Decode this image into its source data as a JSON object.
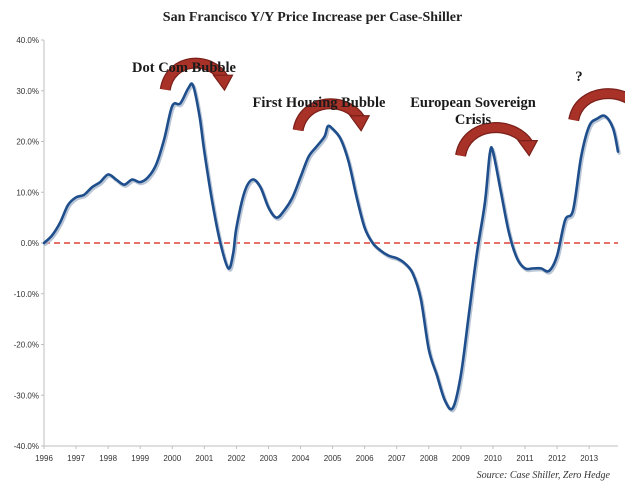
{
  "chart_data": {
    "type": "line",
    "title": "San Francisco Y/Y Price Increase per Case-Shiller",
    "source": "Source: Case Shiller, Zero Hedge",
    "xlabel": "",
    "ylabel": "",
    "xlim": [
      1996,
      2013.9
    ],
    "ylim": [
      -40,
      40
    ],
    "x_ticks": [
      "1996",
      "1997",
      "1998",
      "1999",
      "2000",
      "2001",
      "2002",
      "2003",
      "2004",
      "2005",
      "2006",
      "2007",
      "2008",
      "2009",
      "2010",
      "2011",
      "2012",
      "2013"
    ],
    "y_ticks": [
      "-40.0%",
      "-30.0%",
      "-20.0%",
      "-10.0%",
      "0.0%",
      "10.0%",
      "20.0%",
      "30.0%",
      "40.0%"
    ],
    "reference_line": {
      "y": 0,
      "style": "dashed",
      "color": "#e0403a"
    },
    "grid": false,
    "series": [
      {
        "name": "San Francisco Y/Y",
        "color": "#1f4e8c",
        "points": [
          [
            1996.0,
            0.0
          ],
          [
            1996.25,
            1.5
          ],
          [
            1996.5,
            4.0
          ],
          [
            1996.75,
            7.5
          ],
          [
            1997.0,
            9.0
          ],
          [
            1997.25,
            9.5
          ],
          [
            1997.5,
            11.0
          ],
          [
            1997.75,
            12.0
          ],
          [
            1998.0,
            13.5
          ],
          [
            1998.25,
            12.5
          ],
          [
            1998.5,
            11.5
          ],
          [
            1998.75,
            12.5
          ],
          [
            1999.0,
            12.0
          ],
          [
            1999.25,
            13.0
          ],
          [
            1999.5,
            15.5
          ],
          [
            1999.75,
            20.5
          ],
          [
            2000.0,
            27.0
          ],
          [
            2000.25,
            27.5
          ],
          [
            2000.5,
            30.5
          ],
          [
            2000.65,
            31.0
          ],
          [
            2000.85,
            25.0
          ],
          [
            2001.0,
            18.0
          ],
          [
            2001.25,
            8.0
          ],
          [
            2001.5,
            0.0
          ],
          [
            2001.75,
            -5.0
          ],
          [
            2001.9,
            -2.0
          ],
          [
            2002.0,
            3.0
          ],
          [
            2002.25,
            10.0
          ],
          [
            2002.5,
            12.5
          ],
          [
            2002.75,
            11.0
          ],
          [
            2003.0,
            7.0
          ],
          [
            2003.25,
            5.0
          ],
          [
            2003.5,
            6.5
          ],
          [
            2003.75,
            9.0
          ],
          [
            2004.0,
            13.0
          ],
          [
            2004.25,
            17.0
          ],
          [
            2004.5,
            19.0
          ],
          [
            2004.75,
            21.0
          ],
          [
            2004.85,
            23.0
          ],
          [
            2005.0,
            22.5
          ],
          [
            2005.25,
            20.5
          ],
          [
            2005.5,
            16.0
          ],
          [
            2005.75,
            9.0
          ],
          [
            2006.0,
            3.0
          ],
          [
            2006.25,
            0.0
          ],
          [
            2006.5,
            -1.5
          ],
          [
            2006.75,
            -2.5
          ],
          [
            2007.0,
            -3.0
          ],
          [
            2007.25,
            -4.0
          ],
          [
            2007.5,
            -6.0
          ],
          [
            2007.75,
            -11.0
          ],
          [
            2008.0,
            -21.0
          ],
          [
            2008.25,
            -26.0
          ],
          [
            2008.5,
            -31.0
          ],
          [
            2008.75,
            -32.5
          ],
          [
            2009.0,
            -26.0
          ],
          [
            2009.25,
            -14.0
          ],
          [
            2009.5,
            -2.0
          ],
          [
            2009.75,
            8.0
          ],
          [
            2009.9,
            17.5
          ],
          [
            2010.0,
            18.0
          ],
          [
            2010.25,
            10.0
          ],
          [
            2010.5,
            2.0
          ],
          [
            2010.75,
            -3.0
          ],
          [
            2011.0,
            -5.0
          ],
          [
            2011.25,
            -5.0
          ],
          [
            2011.5,
            -5.0
          ],
          [
            2011.75,
            -5.5
          ],
          [
            2012.0,
            -2.5
          ],
          [
            2012.25,
            4.5
          ],
          [
            2012.5,
            6.5
          ],
          [
            2012.75,
            17.0
          ],
          [
            2013.0,
            23.0
          ],
          [
            2013.25,
            24.5
          ],
          [
            2013.5,
            25.0
          ],
          [
            2013.75,
            22.5
          ],
          [
            2013.9,
            18.0
          ]
        ]
      }
    ],
    "annotations": [
      {
        "id": "dot-com",
        "lines": [
          "Dot Com Bubble"
        ],
        "x": 2000.65,
        "y": 31.0
      },
      {
        "id": "first-housing",
        "lines": [
          "First Housing Bubble"
        ],
        "x": 2004.85,
        "y": 23.0
      },
      {
        "id": "euro-crisis",
        "lines": [
          "European Sovereign",
          "Crisis"
        ],
        "x": 2010.0,
        "y": 18.0
      },
      {
        "id": "question",
        "lines": [
          "?"
        ],
        "x": 2013.5,
        "y": 25.0
      }
    ]
  },
  "colors": {
    "line": "#1f4e8c",
    "line_shadow": "#a9b8cc",
    "zero_line": "#e0403a",
    "arrow": "#a83228",
    "arrow_dark": "#7a1f19",
    "axis": "#bfbfbf"
  }
}
